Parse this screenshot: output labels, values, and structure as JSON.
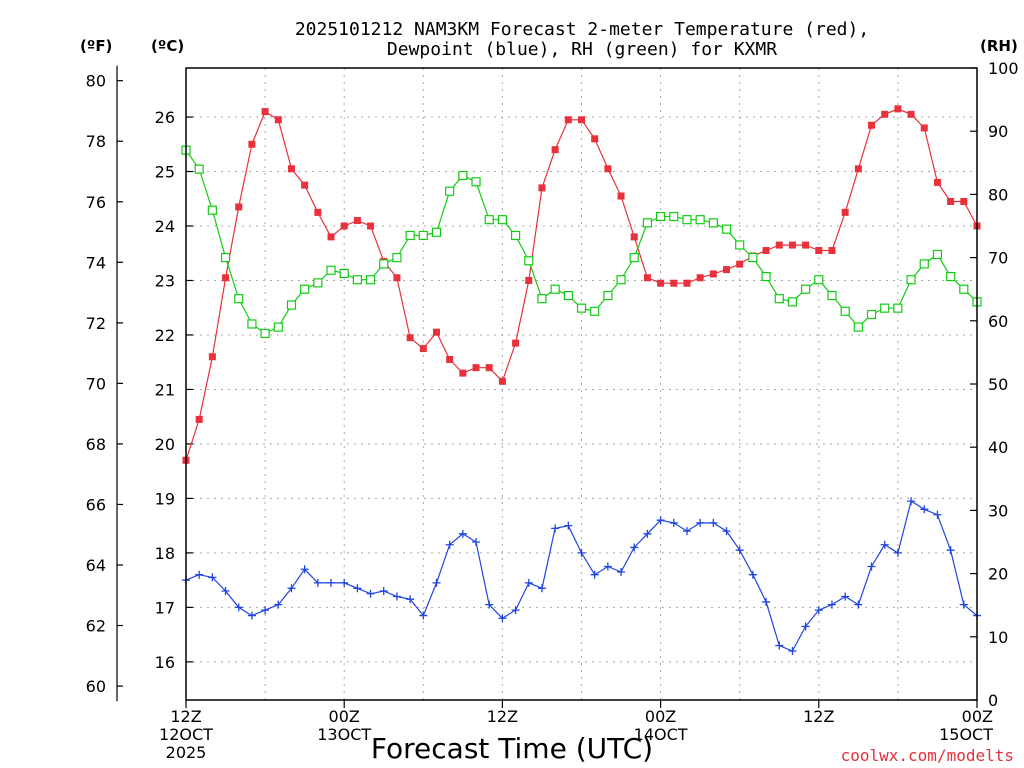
{
  "title": {
    "line1": "2025101212 NAM3KM Forecast 2-meter Temperature (red),",
    "line2": "Dewpoint (blue), RH (green) for KXMR"
  },
  "units": {
    "fahrenheit": "(ºF)",
    "celsius": "(ºC)",
    "rh": "(RH)"
  },
  "credit": "coolwx.com/modelts",
  "colors": {
    "temperature": "#e8313b",
    "dewpoint": "#1f45e0",
    "rh": "#12cc12",
    "frame": "#000000",
    "grid": "#a8a8a8"
  },
  "chart_data": {
    "type": "line",
    "title": "2025101212 NAM3KM Forecast 2-meter Temperature (red), Dewpoint (blue), RH (green) for KXMR",
    "xlabel": "Forecast Time (UTC)",
    "x_hours": [
      0,
      1,
      2,
      3,
      4,
      5,
      6,
      7,
      8,
      9,
      10,
      11,
      12,
      13,
      14,
      15,
      16,
      17,
      18,
      19,
      20,
      21,
      22,
      23,
      24,
      25,
      26,
      27,
      28,
      29,
      30,
      31,
      32,
      33,
      34,
      35,
      36,
      37,
      38,
      39,
      40,
      41,
      42,
      43,
      44,
      45,
      46,
      47,
      48,
      49,
      50,
      51,
      52,
      53,
      54,
      55,
      56,
      57,
      58,
      59,
      60
    ],
    "xlim": [
      0,
      60
    ],
    "x_ticks": [
      {
        "hour": 0,
        "lines": [
          "12Z",
          "12OCT",
          "2025"
        ]
      },
      {
        "hour": 12,
        "lines": [
          "00Z",
          "13OCT"
        ]
      },
      {
        "hour": 24,
        "lines": [
          "12Z"
        ]
      },
      {
        "hour": 36,
        "lines": [
          "00Z",
          "14OCT"
        ]
      },
      {
        "hour": 48,
        "lines": [
          "12Z"
        ]
      },
      {
        "hour": 60,
        "lines": [
          "00Z",
          "15OCT"
        ]
      }
    ],
    "y_left_celsius": {
      "label": "(ºC)",
      "ticks": [
        "16",
        "17",
        "18",
        "19",
        "20",
        "21",
        "22",
        "23",
        "24",
        "25",
        "26"
      ],
      "range": [
        15.3,
        26.9
      ]
    },
    "y_left_fahrenheit": {
      "label": "(ºF)",
      "ticks": [
        "60",
        "62",
        "64",
        "66",
        "68",
        "70",
        "72",
        "74",
        "76",
        "78",
        "80"
      ]
    },
    "y_right_rh": {
      "label": "(RH)",
      "ticks": [
        "0",
        "10",
        "20",
        "30",
        "40",
        "50",
        "60",
        "70",
        "80",
        "90",
        "100"
      ],
      "range": [
        0,
        100
      ]
    },
    "series": [
      {
        "name": "Temperature",
        "unit": "C",
        "color": "#e8313b",
        "marker": "filled-square",
        "values": [
          19.7,
          20.45,
          21.6,
          23.05,
          24.35,
          25.5,
          26.1,
          25.95,
          25.05,
          24.75,
          24.25,
          23.8,
          24.0,
          24.1,
          24.0,
          23.35,
          23.05,
          21.95,
          21.75,
          22.05,
          21.55,
          21.3,
          21.4,
          21.4,
          21.15,
          21.85,
          23.0,
          24.7,
          25.4,
          25.95,
          25.95,
          25.6,
          25.05,
          24.55,
          23.8,
          23.05,
          22.95,
          22.95,
          22.95,
          23.05,
          23.12,
          23.2,
          23.3,
          23.45,
          23.55,
          23.65,
          23.65,
          23.65,
          23.55,
          23.55,
          24.25,
          25.05,
          25.85,
          26.05,
          26.15,
          26.05,
          25.8,
          24.8,
          24.45,
          24.45,
          24.0
        ]
      },
      {
        "name": "Dewpoint",
        "unit": "C",
        "color": "#1f45e0",
        "marker": "plus",
        "values": [
          17.5,
          17.6,
          17.55,
          17.3,
          17.0,
          16.85,
          16.95,
          17.05,
          17.35,
          17.7,
          17.45,
          17.45,
          17.45,
          17.35,
          17.25,
          17.3,
          17.2,
          17.15,
          16.85,
          17.45,
          18.15,
          18.35,
          18.2,
          17.05,
          16.8,
          16.95,
          17.45,
          17.35,
          18.45,
          18.5,
          18.0,
          17.6,
          17.75,
          17.65,
          18.1,
          18.35,
          18.6,
          18.55,
          18.4,
          18.55,
          18.55,
          18.4,
          18.05,
          17.6,
          17.1,
          16.3,
          16.2,
          16.65,
          16.95,
          17.05,
          17.2,
          17.05,
          17.75,
          18.15,
          18.0,
          18.95,
          18.8,
          18.7,
          18.05,
          17.05,
          16.85
        ]
      },
      {
        "name": "RH",
        "unit": "%",
        "color": "#12cc12",
        "marker": "open-square",
        "values": [
          87,
          84,
          77.5,
          70,
          63.5,
          59.5,
          58,
          59,
          62.5,
          65,
          66,
          68,
          67.5,
          66.5,
          66.5,
          69,
          70,
          73.5,
          73.5,
          74,
          80.5,
          83,
          82,
          76,
          76,
          73.5,
          69.5,
          63.5,
          65,
          64,
          62,
          61.5,
          64,
          66.5,
          70,
          75.5,
          76.5,
          76.5,
          76,
          76,
          75.5,
          74.5,
          72,
          70,
          67,
          63.5,
          63,
          65,
          66.5,
          64,
          61.5,
          59,
          61,
          62,
          62,
          66.5,
          69,
          70.5,
          67,
          65,
          63
        ]
      }
    ]
  }
}
